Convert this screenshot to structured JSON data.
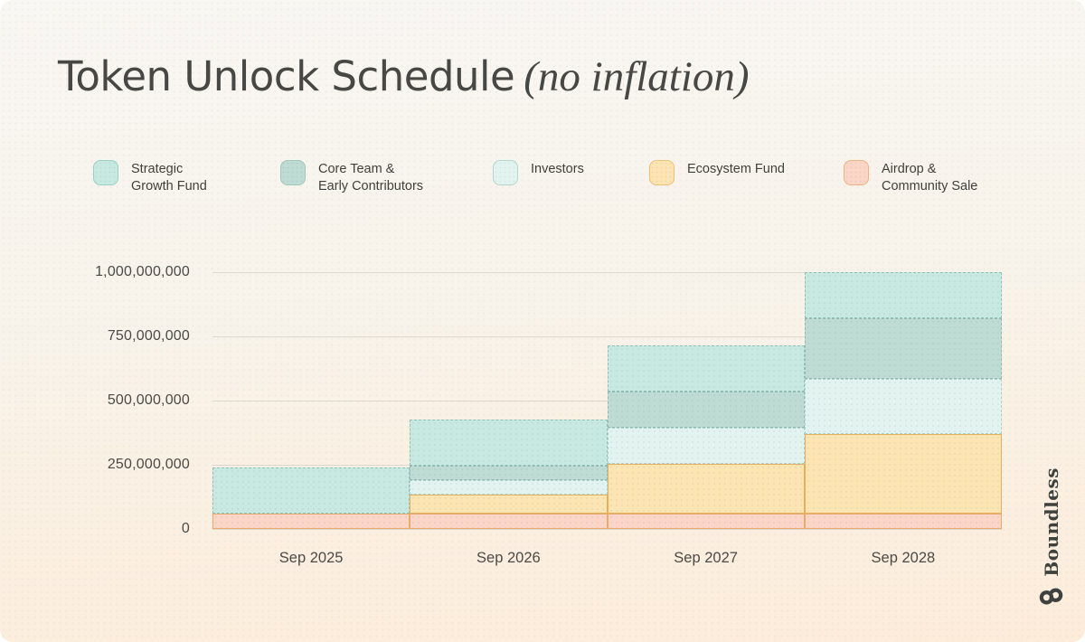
{
  "title": {
    "main": "Token Unlock Schedule",
    "emphasis": "(no inflation)"
  },
  "brand": {
    "name": "Boundless",
    "logo_icon": "boundless-interlocked-rings-icon"
  },
  "colors": {
    "background_top": "#f8f7f3",
    "background_bottom": "#fdecda",
    "title_text": "#474744",
    "axis_text": "#4b4a46",
    "gridline": "#dcd7d0",
    "brand": "#3d423f"
  },
  "legend": {
    "items": [
      {
        "line1": "Strategic",
        "line2": "Growth Fund",
        "swatch_fill": "#c7e9e1",
        "swatch_border": "#99cfc4"
      },
      {
        "line1": "Core Team &",
        "line2": "Early Contributors",
        "swatch_fill": "#bedcd4",
        "swatch_border": "#a3c6bd"
      },
      {
        "line1": "Investors",
        "line2": "",
        "swatch_fill": "#e3f3ef",
        "swatch_border": "#aed8d0"
      },
      {
        "line1": "Ecosystem Fund",
        "line2": "",
        "swatch_fill": "#fce5b2",
        "swatch_border": "#eebe75"
      },
      {
        "line1": "Airdrop &",
        "line2": "Community Sale",
        "swatch_fill": "#fbd5c5",
        "swatch_border": "#f0b183"
      }
    ]
  },
  "chart_data": {
    "type": "area",
    "subtype": "stacked-step",
    "title": "Token Unlock Schedule (no inflation)",
    "categories": [
      "Sep 2025",
      "Sep 2026",
      "Sep 2027",
      "Sep 2028"
    ],
    "series": [
      {
        "name": "Airdrop & Community Sale",
        "fill": "#fbd5c5",
        "stroke": "#eba96b",
        "border_style": "solid",
        "values": [
          60000000,
          60000000,
          60000000,
          60000000
        ]
      },
      {
        "name": "Ecosystem Fund",
        "fill": "#fce5b2",
        "stroke": "#e7ae60",
        "border_style": "solid",
        "values": [
          0,
          75000000,
          195000000,
          310000000
        ]
      },
      {
        "name": "Investors",
        "fill": "#e3f3ef",
        "stroke": "#a9d3ca",
        "border_style": "dashed",
        "values": [
          0,
          55000000,
          140000000,
          215000000
        ]
      },
      {
        "name": "Core Team & Early Contributors",
        "fill": "#bedcd4",
        "stroke": "#94b9b0",
        "border_style": "dashed",
        "values": [
          0,
          55000000,
          140000000,
          235000000
        ]
      },
      {
        "name": "Strategic Growth Fund",
        "fill": "#c7e9e1",
        "stroke": "#8fc0b5",
        "border_style": "dashed",
        "values": [
          180000000,
          180000000,
          180000000,
          180000000
        ]
      }
    ],
    "stacked": true,
    "cumulative_totals": [
      240000000,
      425000000,
      715000000,
      1000000000
    ],
    "ylim": [
      0,
      1000000000
    ],
    "y_ticks": [
      {
        "value": 0,
        "label": "0"
      },
      {
        "value": 250000000,
        "label": "250,000,000"
      },
      {
        "value": 500000000,
        "label": "500,000,000"
      },
      {
        "value": 750000000,
        "label": "750,000,000"
      },
      {
        "value": 1000000000,
        "label": "1,000,000,000"
      }
    ],
    "grid": true,
    "legend_position": "top"
  }
}
